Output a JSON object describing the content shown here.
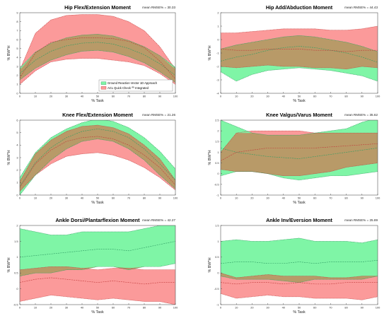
{
  "colors": {
    "grv_band": "#7ff5a6",
    "grv_edge": "#2a9a5a",
    "grv_mean": "#2e9d63",
    "acl_band": "#fb9a9a",
    "acl_edge": "#c23a3a",
    "acl_mean": "#c23a3a",
    "overlap": "#b89a68"
  },
  "legend": {
    "grv_label": "Ground Reaction Vector 1D Approach",
    "acl_label": "ACL Quick Check",
    "acl_sup": "(R)",
    "acl_suffix": " Integrated"
  },
  "chart_data": [
    {
      "type": "area",
      "title": "Hip Flex/Extension Moment",
      "annotation": "mean RMSE% = 30.33",
      "xlabel": "% Task",
      "ylabel": "% BW*H",
      "xlim": [
        0,
        100
      ],
      "ylim": [
        0,
        9
      ],
      "xticks": [
        0,
        10,
        20,
        30,
        40,
        50,
        60,
        70,
        80,
        90,
        100
      ],
      "yticks": [
        0,
        1,
        2,
        3,
        4,
        5,
        6,
        7,
        8,
        9
      ],
      "grid": false,
      "legend_position": "bottom-right",
      "x": [
        0,
        10,
        20,
        30,
        40,
        50,
        60,
        70,
        80,
        90,
        100
      ],
      "series": [
        {
          "name": "Ground Reaction Vector 1D Approach",
          "mean": [
            2.2,
            3.7,
            4.7,
            5.3,
            5.6,
            5.7,
            5.5,
            5.0,
            4.3,
            3.3,
            2.0
          ],
          "upper": [
            2.8,
            4.6,
            5.6,
            6.2,
            6.5,
            6.6,
            6.4,
            5.9,
            5.2,
            4.2,
            2.9
          ],
          "lower": [
            1.5,
            2.8,
            3.7,
            4.3,
            4.7,
            4.8,
            4.6,
            4.1,
            3.4,
            2.4,
            1.2
          ]
        },
        {
          "name": "ACL Quick Check (R) Integrated",
          "mean": [
            1.7,
            4.5,
            5.7,
            6.0,
            6.2,
            6.2,
            6.1,
            5.8,
            5.1,
            3.6,
            1.6
          ],
          "upper": [
            2.6,
            6.7,
            8.2,
            8.7,
            8.8,
            8.8,
            8.6,
            8.0,
            7.0,
            5.2,
            2.7
          ],
          "lower": [
            1.0,
            2.5,
            3.5,
            3.8,
            3.9,
            3.9,
            3.7,
            3.5,
            3.1,
            2.2,
            1.0
          ]
        }
      ]
    },
    {
      "type": "area",
      "title": "Hip Add/Abduction Moment",
      "annotation": "mean RMSE% = 44.43",
      "xlabel": "% Task",
      "ylabel": "% BW*H",
      "xlim": [
        0,
        100
      ],
      "ylim": [
        -4,
        2
      ],
      "xticks": [
        0,
        10,
        20,
        30,
        40,
        50,
        60,
        70,
        80,
        90,
        100
      ],
      "yticks": [
        -4,
        -3,
        -2,
        -1,
        0,
        1,
        2
      ],
      "grid": false,
      "x": [
        0,
        10,
        20,
        30,
        40,
        50,
        60,
        70,
        80,
        90,
        100
      ],
      "series": [
        {
          "name": "Ground Reaction Vector 1D Approach",
          "mean": [
            -1.6,
            -1.3,
            -1.1,
            -0.8,
            -0.6,
            -0.5,
            -0.6,
            -0.8,
            -1.0,
            -1.3,
            -1.7
          ],
          "upper": [
            -0.7,
            -0.4,
            -0.2,
            0.0,
            0.2,
            0.3,
            0.2,
            0.0,
            -0.2,
            -0.5,
            -0.9
          ],
          "lower": [
            -2.4,
            -3.1,
            -2.6,
            -2.3,
            -2.2,
            -2.1,
            -2.2,
            -2.3,
            -2.5,
            -2.7,
            -3.1
          ]
        },
        {
          "name": "ACL Quick Check (R) Integrated",
          "mean": [
            -0.7,
            -0.8,
            -0.8,
            -0.7,
            -0.7,
            -0.7,
            -0.8,
            -0.8,
            -0.9,
            -0.8,
            -0.8
          ],
          "upper": [
            0.5,
            0.5,
            0.6,
            0.7,
            0.8,
            0.8,
            0.8,
            0.7,
            0.7,
            0.8,
            1.0
          ],
          "lower": [
            -2.0,
            -2.1,
            -2.0,
            -1.9,
            -2.0,
            -2.0,
            -2.1,
            -2.1,
            -2.2,
            -2.0,
            -2.1
          ]
        }
      ]
    },
    {
      "type": "area",
      "title": "Knee Flex/Extension Moment",
      "annotation": "mean RMSE% = 21.26",
      "xlabel": "% Task",
      "ylabel": "% BW*H",
      "xlim": [
        0,
        100
      ],
      "ylim": [
        0,
        6
      ],
      "xticks": [
        0,
        10,
        20,
        30,
        40,
        50,
        60,
        70,
        80,
        90,
        100
      ],
      "yticks": [
        0,
        1,
        2,
        3,
        4,
        5,
        6
      ],
      "grid": false,
      "x": [
        0,
        10,
        20,
        30,
        40,
        50,
        60,
        70,
        80,
        90,
        100
      ],
      "series": [
        {
          "name": "Ground Reaction Vector 1D Approach",
          "mean": [
            0.7,
            2.6,
            3.8,
            4.6,
            5.1,
            5.3,
            5.1,
            4.6,
            3.7,
            2.5,
            1.2
          ],
          "upper": [
            1.4,
            3.4,
            4.6,
            5.3,
            5.8,
            6.1,
            5.9,
            5.4,
            4.6,
            3.5,
            2.1
          ],
          "lower": [
            0.0,
            1.6,
            2.8,
            3.7,
            4.3,
            4.5,
            4.3,
            3.7,
            2.8,
            1.6,
            0.5
          ]
        },
        {
          "name": "ACL Quick Check (R) Integrated",
          "mean": [
            0.6,
            2.5,
            3.6,
            4.3,
            4.6,
            4.7,
            4.5,
            4.0,
            3.2,
            2.2,
            0.8
          ],
          "upper": [
            1.1,
            3.3,
            4.4,
            5.1,
            5.5,
            5.6,
            5.4,
            4.9,
            4.0,
            2.9,
            1.2
          ],
          "lower": [
            0.3,
            1.6,
            2.5,
            3.1,
            3.3,
            3.4,
            3.2,
            2.8,
            2.2,
            1.4,
            0.4
          ]
        }
      ]
    },
    {
      "type": "area",
      "title": "Knee Valgus/Varus Moment",
      "annotation": "mean RMSE% = 35.62",
      "xlabel": "% Task",
      "ylabel": "% BW*H",
      "xlim": [
        0,
        100
      ],
      "ylim": [
        -1,
        2.5
      ],
      "xticks": [
        0,
        10,
        20,
        30,
        40,
        50,
        60,
        70,
        80,
        90,
        100
      ],
      "yticks": [
        -1,
        -0.5,
        0,
        0.5,
        1,
        1.5,
        2,
        2.5
      ],
      "grid": false,
      "x": [
        0,
        10,
        20,
        30,
        40,
        50,
        60,
        70,
        80,
        90,
        100
      ],
      "series": [
        {
          "name": "Ground Reaction Vector 1D Approach",
          "mean": [
            1.2,
            1.0,
            0.9,
            0.8,
            0.75,
            0.7,
            0.8,
            0.9,
            1.0,
            1.1,
            1.2
          ],
          "upper": [
            2.5,
            2.2,
            1.9,
            1.8,
            1.8,
            1.8,
            1.9,
            2.0,
            2.1,
            2.4,
            2.6
          ],
          "lower": [
            -0.1,
            0.1,
            0.1,
            0.0,
            -0.2,
            -0.3,
            -0.2,
            -0.1,
            -0.1,
            0.0,
            0.1
          ]
        },
        {
          "name": "ACL Quick Check (R) Integrated",
          "mean": [
            0.6,
            1.0,
            1.1,
            1.2,
            1.2,
            1.2,
            1.2,
            1.25,
            1.3,
            1.35,
            1.4
          ],
          "upper": [
            1.0,
            1.9,
            2.0,
            2.0,
            2.0,
            2.0,
            1.9,
            1.9,
            1.9,
            1.9,
            1.9
          ],
          "lower": [
            0.2,
            0.1,
            0.1,
            0.0,
            -0.1,
            -0.1,
            0.0,
            0.1,
            0.3,
            0.4,
            0.5
          ]
        }
      ]
    },
    {
      "type": "area",
      "title": "Ankle Dorsi/Plantarflexion Moment",
      "annotation": "mean RMSE% = 42.27",
      "xlabel": "% Task",
      "ylabel": "% BW*H",
      "xlim": [
        0,
        100
      ],
      "ylim": [
        -0.5,
        2
      ],
      "xticks": [
        0,
        10,
        20,
        30,
        40,
        50,
        60,
        70,
        80,
        90,
        100
      ],
      "yticks": [
        -0.5,
        0,
        0.5,
        1,
        1.5,
        2
      ],
      "grid": false,
      "x": [
        0,
        10,
        20,
        30,
        40,
        50,
        60,
        70,
        80,
        90,
        100
      ],
      "series": [
        {
          "name": "Ground Reaction Vector 1D Approach",
          "mean": [
            1.0,
            1.05,
            1.1,
            1.15,
            1.2,
            1.25,
            1.25,
            1.2,
            1.3,
            1.4,
            1.5
          ],
          "upper": [
            1.9,
            1.8,
            1.7,
            1.7,
            1.8,
            1.8,
            1.8,
            1.8,
            1.9,
            2.0,
            2.1
          ],
          "lower": [
            0.4,
            0.5,
            0.5,
            0.6,
            0.6,
            0.7,
            0.7,
            0.6,
            0.7,
            0.7,
            0.8
          ]
        },
        {
          "name": "ACL Quick Check (R) Integrated",
          "mean": [
            0.2,
            0.3,
            0.35,
            0.3,
            0.25,
            0.2,
            0.25,
            0.2,
            0.15,
            0.2,
            0.2
          ],
          "upper": [
            0.6,
            0.65,
            0.7,
            0.7,
            0.65,
            0.6,
            0.65,
            0.65,
            0.6,
            0.6,
            0.6
          ],
          "lower": [
            -0.4,
            -0.3,
            -0.2,
            -0.25,
            -0.3,
            -0.35,
            -0.3,
            -0.35,
            -0.4,
            -0.4,
            -0.5
          ]
        }
      ]
    },
    {
      "type": "area",
      "title": "Ankle Inv/Eversion Moment",
      "annotation": "mean RMSE% = 25.89",
      "xlabel": "% Task",
      "ylabel": "% BW*H",
      "xlim": [
        0,
        100
      ],
      "ylim": [
        -1,
        1.5
      ],
      "xticks": [
        0,
        10,
        20,
        30,
        40,
        50,
        60,
        70,
        80,
        90,
        100
      ],
      "yticks": [
        -1,
        -0.5,
        0,
        0.5,
        1,
        1.5
      ],
      "grid": false,
      "x": [
        0,
        10,
        20,
        30,
        40,
        50,
        60,
        70,
        80,
        90,
        100
      ],
      "series": [
        {
          "name": "Ground Reaction Vector 1D Approach",
          "mean": [
            0.3,
            0.35,
            0.35,
            0.3,
            0.3,
            0.35,
            0.3,
            0.35,
            0.35,
            0.35,
            0.4
          ],
          "upper": [
            1.0,
            1.05,
            1.0,
            1.0,
            1.05,
            1.1,
            1.0,
            1.0,
            1.0,
            0.95,
            1.05
          ],
          "lower": [
            -0.1,
            -0.2,
            -0.2,
            -0.2,
            -0.25,
            -0.3,
            -0.2,
            -0.2,
            -0.2,
            -0.2,
            -0.1
          ]
        },
        {
          "name": "ACL Quick Check (R) Integrated",
          "mean": [
            -0.3,
            -0.35,
            -0.3,
            -0.3,
            -0.35,
            -0.3,
            -0.35,
            -0.35,
            -0.3,
            -0.3,
            -0.3
          ],
          "upper": [
            0.0,
            -0.15,
            -0.1,
            -0.05,
            -0.1,
            -0.1,
            -0.1,
            -0.15,
            -0.15,
            -0.1,
            -0.1
          ],
          "lower": [
            -0.65,
            -0.8,
            -0.75,
            -0.7,
            -0.75,
            -0.75,
            -0.8,
            -0.8,
            -0.8,
            -0.85,
            -0.75
          ]
        }
      ]
    }
  ]
}
